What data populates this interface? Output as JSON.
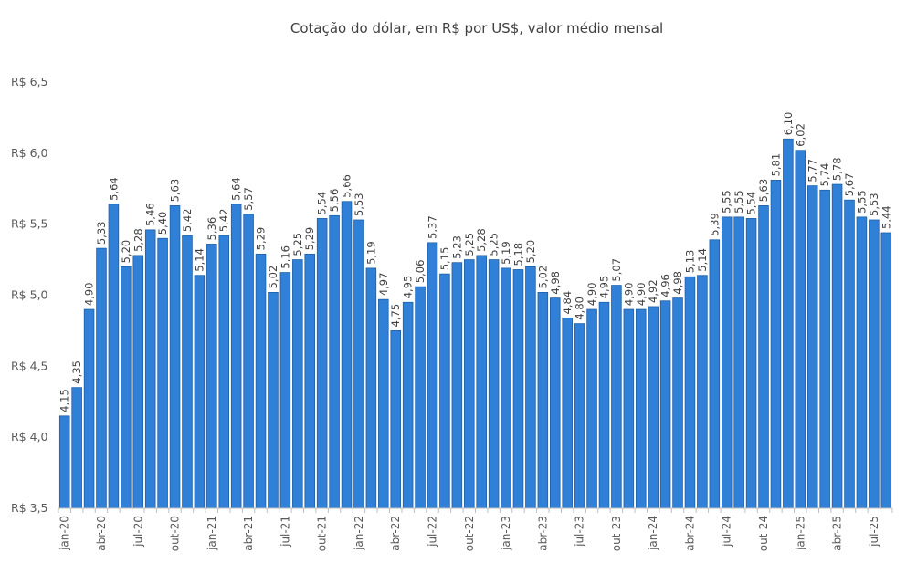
{
  "chart_data": {
    "type": "bar",
    "title": "Cotação do dólar, em R$ por US$, valor médio mensal",
    "xlabel": "",
    "ylabel": "",
    "ylim": [
      3.5,
      6.5
    ],
    "yticks": [
      3.5,
      4.0,
      4.5,
      5.0,
      5.5,
      6.0,
      6.5
    ],
    "ytick_labels": [
      "R$ 3,5",
      "R$ 4,0",
      "R$ 4,5",
      "R$ 5,0",
      "R$ 5,5",
      "R$ 6,0",
      "R$ 6,5"
    ],
    "categories": [
      "jan-20",
      "fev-20",
      "mar-20",
      "abr-20",
      "mai-20",
      "jun-20",
      "jul-20",
      "ago-20",
      "set-20",
      "out-20",
      "nov-20",
      "dez-20",
      "jan-21",
      "fev-21",
      "mar-21",
      "abr-21",
      "mai-21",
      "jun-21",
      "jul-21",
      "ago-21",
      "set-21",
      "out-21",
      "nov-21",
      "dez-21",
      "jan-22",
      "fev-22",
      "mar-22",
      "abr-22",
      "mai-22",
      "jun-22",
      "jul-22",
      "ago-22",
      "set-22",
      "out-22",
      "nov-22",
      "dez-22",
      "jan-23",
      "fev-23",
      "mar-23",
      "abr-23",
      "mai-23",
      "jun-23",
      "jul-23",
      "ago-23",
      "set-23",
      "out-23",
      "nov-23",
      "dez-23",
      "jan-24",
      "fev-24",
      "mar-24",
      "abr-24",
      "mai-24",
      "jun-24",
      "jul-24",
      "ago-24",
      "set-24",
      "out-24",
      "nov-24",
      "dez-24",
      "jan-25",
      "fev-25",
      "mar-25",
      "abr-25",
      "mai-25",
      "jun-25",
      "jul-25",
      "ago-25"
    ],
    "xtick_labels": [
      {
        "index": 0,
        "label": "jan-20"
      },
      {
        "index": 3,
        "label": "abr-20"
      },
      {
        "index": 6,
        "label": "jul-20"
      },
      {
        "index": 9,
        "label": "out-20"
      },
      {
        "index": 12,
        "label": "jan-21"
      },
      {
        "index": 15,
        "label": "abr-21"
      },
      {
        "index": 18,
        "label": "jul-21"
      },
      {
        "index": 21,
        "label": "out-21"
      },
      {
        "index": 24,
        "label": "jan-22"
      },
      {
        "index": 27,
        "label": "abr-22"
      },
      {
        "index": 30,
        "label": "jul-22"
      },
      {
        "index": 33,
        "label": "out-22"
      },
      {
        "index": 36,
        "label": "jan-23"
      },
      {
        "index": 39,
        "label": "abr-23"
      },
      {
        "index": 42,
        "label": "jul-23"
      },
      {
        "index": 45,
        "label": "out-23"
      },
      {
        "index": 48,
        "label": "jan-24"
      },
      {
        "index": 51,
        "label": "abr-24"
      },
      {
        "index": 54,
        "label": "jul-24"
      },
      {
        "index": 57,
        "label": "out-24"
      },
      {
        "index": 60,
        "label": "jan-25"
      },
      {
        "index": 63,
        "label": "abr-25"
      },
      {
        "index": 66,
        "label": "jul-25"
      }
    ],
    "values": [
      4.15,
      4.35,
      4.9,
      5.33,
      5.64,
      5.2,
      5.28,
      5.46,
      5.4,
      5.63,
      5.42,
      5.14,
      5.36,
      5.42,
      5.64,
      5.57,
      5.29,
      5.02,
      5.16,
      5.25,
      5.29,
      5.54,
      5.56,
      5.66,
      5.53,
      5.19,
      4.97,
      4.75,
      4.95,
      5.06,
      5.37,
      5.15,
      5.23,
      5.25,
      5.28,
      5.25,
      5.19,
      5.18,
      5.2,
      5.02,
      4.98,
      4.84,
      4.8,
      4.9,
      4.95,
      5.07,
      4.9,
      4.9,
      4.92,
      4.96,
      4.98,
      5.13,
      5.14,
      5.39,
      5.55,
      5.55,
      5.54,
      5.63,
      5.81,
      6.1,
      6.02,
      5.77,
      5.74,
      5.78,
      5.67,
      5.55,
      5.53,
      5.44
    ],
    "value_labels": [
      "4,15",
      "4,35",
      "4,90",
      "5,33",
      "5,64",
      "5,20",
      "5,28",
      "5,46",
      "5,40",
      "5,63",
      "5,42",
      "5,14",
      "5,36",
      "5,42",
      "5,64",
      "5,57",
      "5,29",
      "5,02",
      "5,16",
      "5,25",
      "5,29",
      "5,54",
      "5,56",
      "5,66",
      "5,53",
      "5,19",
      "4,97",
      "4,75",
      "4,95",
      "5,06",
      "5,37",
      "5,15",
      "5,23",
      "5,25",
      "5,28",
      "5,25",
      "5,19",
      "5,18",
      "5,20",
      "5,02",
      "4,98",
      "4,84",
      "4,80",
      "4,90",
      "4,95",
      "5,07",
      "4,90",
      "4,90",
      "4,92",
      "4,96",
      "4,98",
      "5,13",
      "5,14",
      "5,39",
      "5,55",
      "5,55",
      "5,54",
      "5,63",
      "5,81",
      "6,10",
      "6,02",
      "5,77",
      "5,74",
      "5,78",
      "5,67",
      "5,55",
      "5,53",
      "5,44"
    ],
    "grid": false,
    "legend": "none",
    "bar_color": "#2F80D6",
    "bar_edge_color": "#1F5FA8"
  }
}
